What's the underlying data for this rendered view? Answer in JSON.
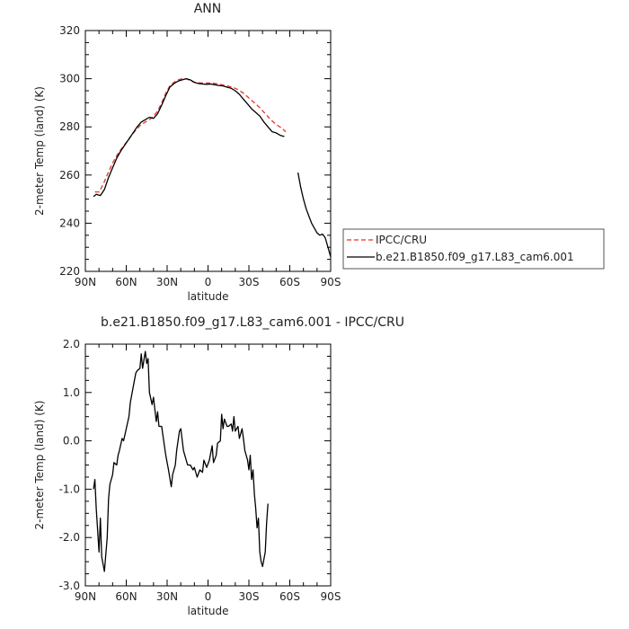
{
  "chart_data": [
    {
      "type": "line",
      "title": "ANN",
      "xlabel": "latitude",
      "ylabel": "2-meter Temp (land) (K)",
      "x_tick_labels": [
        "90N",
        "60N",
        "30N",
        "0",
        "30S",
        "60S",
        "90S"
      ],
      "x_tick_values": [
        90,
        60,
        30,
        0,
        -30,
        -60,
        -90
      ],
      "xlim": [
        90,
        -90
      ],
      "ylim": [
        220,
        320
      ],
      "y_ticks": [
        220,
        240,
        260,
        280,
        300,
        320
      ],
      "y_tick_labels": [
        "220",
        "240",
        "260",
        "280",
        "300",
        "320"
      ],
      "legend_position": "right",
      "series": [
        {
          "name": "IPCC/CRU",
          "color": "#e8312a",
          "dash": "dashed",
          "segments": [
            [
              [
                83,
                253
              ],
              [
                80,
                253
              ],
              [
                77,
                256
              ],
              [
                74,
                260
              ],
              [
                70,
                265
              ],
              [
                66,
                269
              ],
              [
                62,
                272
              ],
              [
                58,
                275
              ],
              [
                54,
                278
              ],
              [
                50,
                280.5
              ],
              [
                46,
                282
              ],
              [
                43,
                283
              ],
              [
                40,
                284.5
              ],
              [
                37,
                286.5
              ],
              [
                34,
                290
              ],
              [
                31,
                294
              ],
              [
                28,
                297
              ],
              [
                25,
                298.5
              ],
              [
                22,
                299.5
              ],
              [
                19,
                300
              ],
              [
                16,
                300
              ],
              [
                13,
                299.2
              ],
              [
                10,
                298.5
              ],
              [
                6,
                298.3
              ],
              [
                2,
                298.2
              ],
              [
                -2,
                298.2
              ],
              [
                -6,
                298
              ],
              [
                -10,
                297.5
              ],
              [
                -14,
                297
              ],
              [
                -18,
                296.5
              ],
              [
                -22,
                295.5
              ],
              [
                -26,
                294
              ],
              [
                -30,
                292
              ],
              [
                -34,
                290
              ],
              [
                -38,
                288
              ],
              [
                -42,
                285.5
              ],
              [
                -46,
                283
              ],
              [
                -50,
                281
              ],
              [
                -54,
                279.5
              ],
              [
                -57,
                278
              ]
            ]
          ]
        },
        {
          "name": "b.e21.B1850.f09_g17.L83_cam6.001",
          "color": "#000000",
          "dash": "solid",
          "segments": [
            [
              [
                84,
                251
              ],
              [
                82,
                252
              ],
              [
                79,
                251.5
              ],
              [
                76,
                254
              ],
              [
                73,
                259
              ],
              [
                70,
                263
              ],
              [
                67,
                267
              ],
              [
                64,
                270
              ],
              [
                61,
                272.5
              ],
              [
                58,
                275
              ],
              [
                55,
                277.5
              ],
              [
                52,
                280
              ],
              [
                49,
                282
              ],
              [
                46,
                283
              ],
              [
                43,
                284
              ],
              [
                40,
                283.5
              ],
              [
                37,
                285.5
              ],
              [
                34,
                289
              ],
              [
                31,
                293
              ],
              [
                28,
                296.5
              ],
              [
                25,
                298
              ],
              [
                22,
                299
              ],
              [
                19,
                299.5
              ],
              [
                16,
                300
              ],
              [
                13,
                299.5
              ],
              [
                10,
                298.5
              ],
              [
                7,
                298
              ],
              [
                4,
                297.8
              ],
              [
                1,
                297.7
              ],
              [
                -2,
                297.8
              ],
              [
                -5,
                297.5
              ],
              [
                -8,
                297.2
              ],
              [
                -11,
                297
              ],
              [
                -14,
                296.5
              ],
              [
                -17,
                296
              ],
              [
                -20,
                295
              ],
              [
                -23,
                293.5
              ],
              [
                -26,
                291.5
              ],
              [
                -29,
                289.5
              ],
              [
                -32,
                287.5
              ],
              [
                -35,
                286
              ],
              [
                -38,
                284.5
              ],
              [
                -41,
                282
              ],
              [
                -44,
                280
              ],
              [
                -47,
                278
              ],
              [
                -50,
                277.5
              ],
              [
                -53,
                276.5
              ],
              [
                -56,
                276
              ]
            ],
            [
              [
                -66,
                261
              ],
              [
                -68,
                255
              ],
              [
                -70,
                250
              ],
              [
                -72,
                246
              ],
              [
                -74,
                243
              ],
              [
                -76,
                240
              ],
              [
                -78,
                238
              ],
              [
                -80,
                236
              ],
              [
                -82,
                235
              ],
              [
                -84,
                235.5
              ],
              [
                -86,
                234
              ],
              [
                -88,
                230
              ],
              [
                -90,
                226
              ]
            ]
          ]
        }
      ]
    },
    {
      "type": "line",
      "title": "b.e21.B1850.f09_g17.L83_cam6.001 - IPCC/CRU",
      "xlabel": "latitude",
      "ylabel": "2-meter Temp (land) (K)",
      "x_tick_labels": [
        "90N",
        "60N",
        "30N",
        "0",
        "30S",
        "60S",
        "90S"
      ],
      "x_tick_values": [
        90,
        60,
        30,
        0,
        -30,
        -60,
        -90
      ],
      "xlim": [
        90,
        -90
      ],
      "ylim": [
        -3.0,
        2.0
      ],
      "y_ticks": [
        -3.0,
        -2.0,
        -1.0,
        0.0,
        1.0,
        2.0
      ],
      "y_tick_labels": [
        "-3.0",
        "-2.0",
        "-1.0",
        "0.0",
        "1.0",
        "2.0"
      ],
      "series": [
        {
          "color": "#000000",
          "dash": "solid",
          "segments": [
            [
              [
                84,
                -1.0
              ],
              [
                83,
                -0.8
              ],
              [
                82,
                -1.4
              ],
              [
                80,
                -2.3
              ],
              [
                79,
                -1.6
              ],
              [
                78,
                -2.4
              ],
              [
                76,
                -2.7
              ],
              [
                74,
                -2.0
              ],
              [
                73,
                -1.2
              ],
              [
                72,
                -0.9
              ],
              [
                70,
                -0.7
              ],
              [
                69,
                -0.45
              ],
              [
                67,
                -0.5
              ],
              [
                66,
                -0.3
              ],
              [
                65,
                -0.2
              ],
              [
                63,
                0.05
              ],
              [
                62,
                0.0
              ],
              [
                60,
                0.25
              ],
              [
                58,
                0.5
              ],
              [
                57,
                0.8
              ],
              [
                55,
                1.1
              ],
              [
                53,
                1.4
              ],
              [
                52,
                1.45
              ],
              [
                50,
                1.5
              ],
              [
                49,
                1.8
              ],
              [
                48,
                1.5
              ],
              [
                46,
                1.85
              ],
              [
                45,
                1.6
              ],
              [
                44,
                1.7
              ],
              [
                43,
                1.0
              ],
              [
                41,
                0.75
              ],
              [
                40,
                0.9
              ],
              [
                38,
                0.4
              ],
              [
                37,
                0.6
              ],
              [
                36,
                0.3
              ],
              [
                34,
                0.3
              ],
              [
                33,
                0.1
              ],
              [
                31,
                -0.3
              ],
              [
                29,
                -0.6
              ],
              [
                27,
                -0.95
              ],
              [
                26,
                -0.7
              ],
              [
                24,
                -0.5
              ],
              [
                23,
                -0.2
              ],
              [
                21,
                0.2
              ],
              [
                20,
                0.25
              ],
              [
                18,
                -0.2
              ],
              [
                16,
                -0.4
              ],
              [
                15,
                -0.5
              ],
              [
                13,
                -0.5
              ],
              [
                11,
                -0.6
              ],
              [
                10,
                -0.55
              ],
              [
                8,
                -0.75
              ],
              [
                6,
                -0.6
              ],
              [
                4,
                -0.65
              ],
              [
                3,
                -0.4
              ],
              [
                1,
                -0.55
              ],
              [
                -1,
                -0.4
              ],
              [
                -3,
                -0.1
              ],
              [
                -4,
                -0.45
              ],
              [
                -6,
                -0.3
              ],
              [
                -7,
                -0.05
              ],
              [
                -9,
                0.0
              ],
              [
                -10,
                0.55
              ],
              [
                -11,
                0.25
              ],
              [
                -12,
                0.45
              ],
              [
                -14,
                0.3
              ],
              [
                -15,
                0.3
              ],
              [
                -17,
                0.35
              ],
              [
                -18,
                0.2
              ],
              [
                -19,
                0.5
              ],
              [
                -20,
                0.2
              ],
              [
                -22,
                0.3
              ],
              [
                -23,
                0.05
              ],
              [
                -25,
                0.25
              ],
              [
                -26,
                0.05
              ],
              [
                -27,
                -0.2
              ],
              [
                -29,
                -0.4
              ],
              [
                -30,
                -0.6
              ],
              [
                -31,
                -0.3
              ],
              [
                -32,
                -0.8
              ],
              [
                -33,
                -0.6
              ],
              [
                -34,
                -1.1
              ],
              [
                -35,
                -1.4
              ],
              [
                -36,
                -1.8
              ],
              [
                -37,
                -1.6
              ],
              [
                -38,
                -2.3
              ],
              [
                -39,
                -2.5
              ],
              [
                -40,
                -2.6
              ],
              [
                -41,
                -2.45
              ],
              [
                -42,
                -2.3
              ],
              [
                -43,
                -1.7
              ],
              [
                -44,
                -1.3
              ]
            ]
          ]
        }
      ]
    }
  ]
}
